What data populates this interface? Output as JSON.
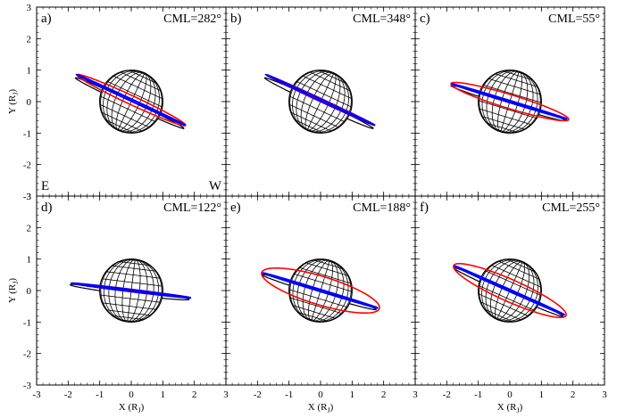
{
  "chart_data": {
    "type": "line",
    "layout": "2x3 grid",
    "xlim": [
      -3,
      3
    ],
    "ylim": [
      -3,
      3
    ],
    "x_ticks": [
      -3,
      -2,
      -1,
      0,
      1,
      2,
      3
    ],
    "y_ticks": [
      -3,
      -2,
      -1,
      0,
      1,
      2,
      3
    ],
    "xlabel": "X (R",
    "xlabel_sub": "J",
    "xlabel_close": ")",
    "ylabel": "Y (R",
    "ylabel_sub": "J",
    "ylabel_close": ")",
    "direction_labels": {
      "east": "E",
      "west": "W"
    },
    "colors": {
      "black_orbit": "#000000",
      "red_orbit": "#ff0000",
      "blue_orbit": "#0000ff",
      "planet_grid": "#000000"
    },
    "planet": {
      "center": [
        0,
        0
      ],
      "radius": 1.0
    },
    "panels": [
      {
        "label": "a)",
        "cml_text": "CML=282°",
        "tilt_deg": 25,
        "black_orbit": {
          "a": 1.9,
          "b": 0.08,
          "center": [
            -0.05,
            -0.05
          ]
        },
        "red_orbit": {
          "a": 1.9,
          "b": 0.14,
          "center": [
            0.0,
            0.05
          ]
        },
        "blue_orbit": {
          "a": 1.9,
          "b": 0.03,
          "center": [
            0.0,
            0.05
          ]
        }
      },
      {
        "label": "b)",
        "cml_text": "CML=348°",
        "tilt_deg": 25,
        "black_orbit": {
          "a": 1.9,
          "b": 0.08,
          "center": [
            -0.05,
            -0.05
          ]
        },
        "red_orbit": {
          "a": 1.9,
          "b": 0.05,
          "center": [
            0.0,
            0.05
          ]
        },
        "blue_orbit": {
          "a": 1.9,
          "b": 0.03,
          "center": [
            0.0,
            0.05
          ]
        }
      },
      {
        "label": "c)",
        "cml_text": "CML=55°",
        "tilt_deg": 17,
        "black_orbit": {
          "a": 1.9,
          "b": 0.08,
          "center": [
            -0.05,
            -0.05
          ]
        },
        "red_orbit": {
          "a": 1.95,
          "b": 0.22,
          "center": [
            0.0,
            0.0
          ]
        },
        "blue_orbit": {
          "a": 1.9,
          "b": 0.03,
          "center": [
            0.0,
            0.0
          ]
        }
      },
      {
        "label": "d)",
        "cml_text": "CML=122°",
        "tilt_deg": 7,
        "black_orbit": {
          "a": 1.9,
          "b": 0.08,
          "center": [
            -0.05,
            -0.05
          ]
        },
        "red_orbit": {
          "a": 1.9,
          "b": 0.04,
          "center": [
            0.0,
            0.0
          ]
        },
        "blue_orbit": {
          "a": 1.9,
          "b": 0.03,
          "center": [
            0.0,
            0.0
          ]
        }
      },
      {
        "label": "e)",
        "cml_text": "CML=188°",
        "tilt_deg": 17,
        "black_orbit": {
          "a": 1.9,
          "b": 0.08,
          "center": [
            -0.05,
            -0.05
          ]
        },
        "red_orbit": {
          "a": 1.95,
          "b": 0.45,
          "center": [
            0.0,
            0.0
          ]
        },
        "blue_orbit": {
          "a": 1.9,
          "b": 0.03,
          "center": [
            0.0,
            0.0
          ]
        }
      },
      {
        "label": "f)",
        "cml_text": "CML=255°",
        "tilt_deg": 24,
        "black_orbit": {
          "a": 1.9,
          "b": 0.08,
          "center": [
            -0.05,
            -0.05
          ]
        },
        "red_orbit": {
          "a": 1.95,
          "b": 0.35,
          "center": [
            0.0,
            0.0
          ]
        },
        "blue_orbit": {
          "a": 1.9,
          "b": 0.03,
          "center": [
            0.0,
            0.0
          ]
        }
      }
    ]
  }
}
